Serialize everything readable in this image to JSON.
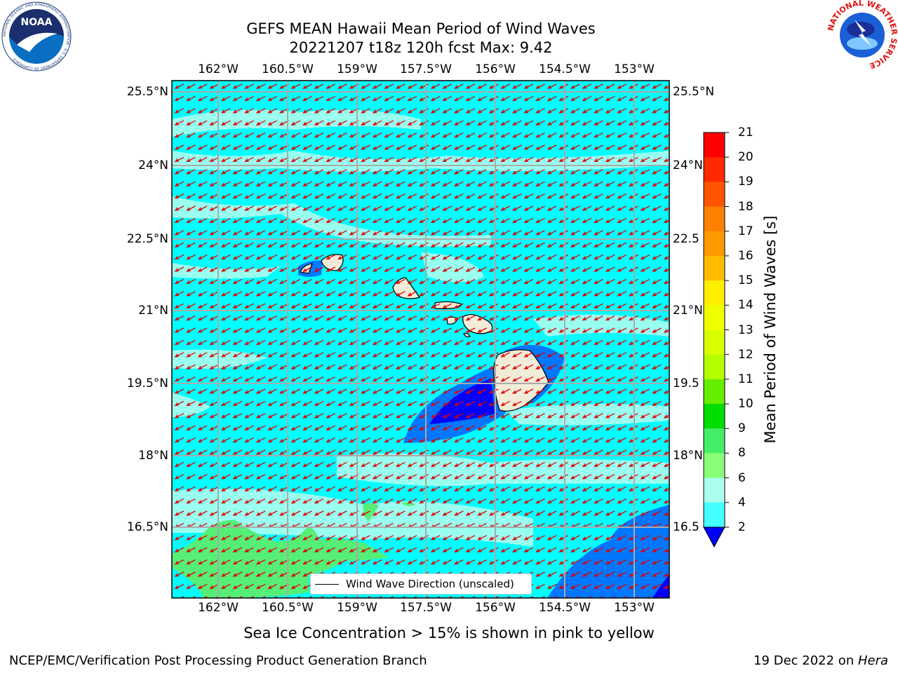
{
  "title": {
    "line1": "GEFS MEAN Hawaii Mean Period of Wind Waves",
    "line2": "20221207 t18z 120h fcst   Max: 9.42"
  },
  "map": {
    "lon_ticks": [
      "162°W",
      "160.5°W",
      "159°W",
      "157.5°W",
      "156°W",
      "154.5°W",
      "153°W"
    ],
    "lat_ticks": [
      "25.5°N",
      "24°N",
      "22.5°N",
      "21°N",
      "19.5°N",
      "18°N",
      "16.5°N"
    ],
    "lat_ticks_right": [
      "25.5°N",
      "24°N",
      "22.5",
      "21°N",
      "19.5",
      "18°N",
      "16.5"
    ],
    "legend_label": "Wind Wave Direction (unscaled)",
    "arrow_color": "#e00000",
    "ocean_base_color": "#00ffff"
  },
  "colorbar": {
    "label": "Mean Period of Wind Waves [s]",
    "ticks": [
      "21",
      "20",
      "19",
      "18",
      "17",
      "16",
      "15",
      "14",
      "13",
      "12",
      "11",
      "10",
      "9",
      "8",
      "6",
      "4",
      "2"
    ],
    "colors": [
      "#ff0000",
      "#ff2a00",
      "#ff5500",
      "#ff8000",
      "#ff9900",
      "#ffbb00",
      "#ffee00",
      "#f0ff00",
      "#d8ff00",
      "#b4ff00",
      "#66ee00",
      "#00dd00",
      "#44ee66",
      "#88ff77",
      "#aaffee",
      "#44ffff",
      "#00eeff",
      "#0077ff",
      "#0000ff"
    ]
  },
  "footer": {
    "sea_ice_note": "Sea Ice Concentration > 15% is shown in pink to yellow",
    "left": "NCEP/EMC/Verification Post Processing Product Generation Branch",
    "right_prefix": "19 Dec 2022 on ",
    "right_machine": "Hera"
  },
  "logos": {
    "noaa_text": "NOAA",
    "noaa_ring": "NATIONAL OCEANIC AND ATMOSPHERIC ADMINISTRATION · U.S. DEPARTMENT OF COMMERCE",
    "nws_ring": "NATIONAL WEATHER SERVICE"
  }
}
